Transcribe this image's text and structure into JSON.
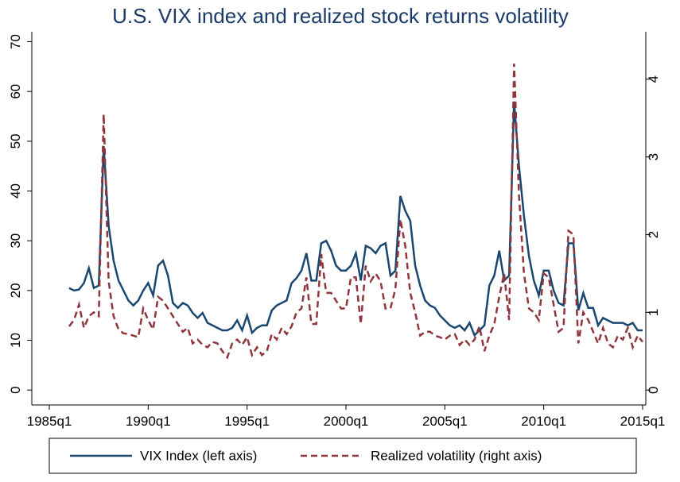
{
  "chart_data": {
    "type": "line",
    "title": "U.S. VIX index and realized stock returns volatility",
    "x": [
      "1986q1",
      "1986q2",
      "1986q3",
      "1986q4",
      "1987q1",
      "1987q2",
      "1987q3",
      "1987q4",
      "1988q1",
      "1988q2",
      "1988q3",
      "1988q4",
      "1989q1",
      "1989q2",
      "1989q3",
      "1989q4",
      "1990q1",
      "1990q2",
      "1990q3",
      "1990q4",
      "1991q1",
      "1991q2",
      "1991q3",
      "1991q4",
      "1992q1",
      "1992q2",
      "1992q3",
      "1992q4",
      "1993q1",
      "1993q2",
      "1993q3",
      "1993q4",
      "1994q1",
      "1994q2",
      "1994q3",
      "1994q4",
      "1995q1",
      "1995q2",
      "1995q3",
      "1995q4",
      "1996q1",
      "1996q2",
      "1996q3",
      "1996q4",
      "1997q1",
      "1997q2",
      "1997q3",
      "1997q4",
      "1998q1",
      "1998q2",
      "1998q3",
      "1998q4",
      "1999q1",
      "1999q2",
      "1999q3",
      "1999q4",
      "2000q1",
      "2000q2",
      "2000q3",
      "2000q4",
      "2001q1",
      "2001q2",
      "2001q3",
      "2001q4",
      "2002q1",
      "2002q2",
      "2002q3",
      "2002q4",
      "2003q1",
      "2003q2",
      "2003q3",
      "2003q4",
      "2004q1",
      "2004q2",
      "2004q3",
      "2004q4",
      "2005q1",
      "2005q2",
      "2005q3",
      "2005q4",
      "2006q1",
      "2006q2",
      "2006q3",
      "2006q4",
      "2007q1",
      "2007q2",
      "2007q3",
      "2007q4",
      "2008q1",
      "2008q2",
      "2008q3",
      "2008q4",
      "2009q1",
      "2009q2",
      "2009q3",
      "2009q4",
      "2010q1",
      "2010q2",
      "2010q3",
      "2010q4",
      "2011q1",
      "2011q2",
      "2011q3",
      "2011q4",
      "2012q1",
      "2012q2",
      "2012q3",
      "2012q4",
      "2013q1",
      "2013q2",
      "2013q3",
      "2013q4",
      "2014q1",
      "2014q2",
      "2014q3",
      "2014q4",
      "2015q1"
    ],
    "series": [
      {
        "name": "VIX Index (left axis)",
        "color": "#1a476f",
        "axis": "y",
        "dash": "none",
        "values": [
          20.5,
          20,
          20.2,
          21.5,
          24.5,
          20.5,
          21,
          49,
          33,
          26,
          22,
          20,
          18,
          17,
          18,
          20,
          21.5,
          19,
          25,
          26,
          23,
          17.5,
          16.5,
          17.5,
          17,
          15.5,
          14.5,
          15.5,
          13.5,
          13,
          12.5,
          12,
          12,
          12.5,
          14,
          12,
          15,
          11.5,
          12.5,
          13,
          13,
          16,
          17,
          17.5,
          18,
          21.5,
          22.5,
          24,
          27.5,
          22,
          22,
          29.5,
          30,
          28,
          25,
          24,
          24,
          25,
          27.5,
          22,
          29,
          28.5,
          27.5,
          29,
          29.5,
          23,
          24,
          39,
          36,
          34,
          25,
          21,
          18,
          17,
          16.5,
          15,
          14,
          13,
          12.5,
          13,
          12,
          13.5,
          11,
          12,
          13,
          21,
          23,
          28,
          22,
          23,
          58,
          45,
          35,
          27,
          22,
          19,
          24,
          24,
          20,
          17.5,
          17,
          29.5,
          29.5,
          16,
          19.5,
          16.5,
          16.5,
          13,
          14.5,
          14,
          13.5,
          13.5,
          13.5,
          13,
          13.5,
          12,
          12
        ]
      },
      {
        "name": "Realized volatility (right axis)",
        "color": "#90353b",
        "axis": "y2",
        "dash": "8 5",
        "values": [
          0.82,
          0.9,
          1.1,
          0.8,
          0.95,
          1.0,
          0.95,
          3.55,
          1.4,
          0.95,
          0.78,
          0.73,
          0.72,
          0.7,
          0.68,
          1.05,
          0.9,
          0.78,
          1.2,
          1.15,
          1.05,
          0.95,
          0.85,
          0.75,
          0.8,
          0.6,
          0.65,
          0.58,
          0.55,
          0.62,
          0.6,
          0.5,
          0.42,
          0.6,
          0.65,
          0.58,
          0.68,
          0.45,
          0.55,
          0.45,
          0.5,
          0.72,
          0.65,
          0.8,
          0.72,
          0.82,
          1.0,
          1.05,
          1.45,
          0.85,
          0.85,
          1.75,
          1.25,
          1.25,
          1.15,
          1.05,
          1.05,
          1.45,
          1.45,
          0.85,
          1.6,
          1.4,
          1.5,
          1.4,
          1.05,
          1.05,
          1.3,
          2.2,
          1.85,
          1.25,
          1.0,
          0.7,
          0.75,
          0.75,
          0.7,
          0.68,
          0.65,
          0.7,
          0.72,
          0.58,
          0.65,
          0.58,
          0.65,
          0.82,
          0.5,
          0.7,
          0.85,
          1.2,
          1.5,
          0.9,
          4.2,
          2.5,
          1.5,
          1.05,
          1.0,
          0.9,
          1.5,
          1.45,
          1.1,
          0.75,
          0.8,
          2.05,
          2.0,
          0.6,
          1.0,
          0.9,
          0.75,
          0.6,
          0.8,
          0.6,
          0.55,
          0.7,
          0.65,
          0.8,
          0.55,
          0.7,
          0.62
        ]
      }
    ],
    "xlim": [
      "1985q1",
      "2015q1"
    ],
    "xticks": [
      "1985q1",
      "1990q1",
      "1995q1",
      "2000q1",
      "2005q1",
      "2010q1",
      "2015q1"
    ],
    "ylim": [
      -3,
      72
    ],
    "yticks": [
      0,
      10,
      20,
      30,
      40,
      50,
      60,
      70
    ],
    "y2lim": [
      -0.192,
      4.61
    ],
    "y2ticks": [
      0,
      1,
      2,
      3,
      4
    ],
    "legend": "bottom"
  }
}
